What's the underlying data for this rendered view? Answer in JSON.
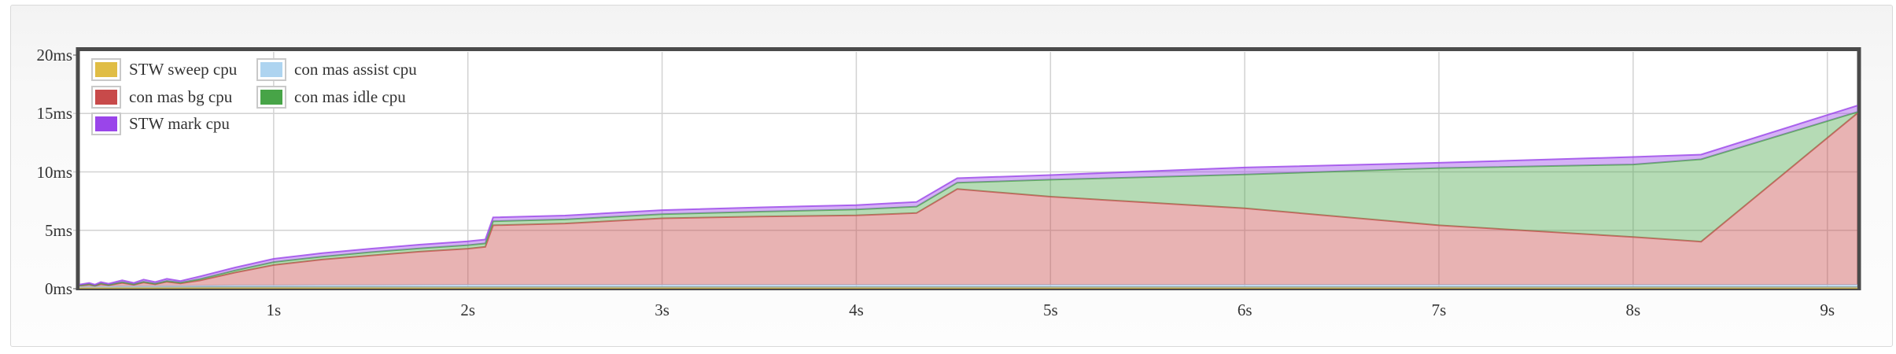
{
  "page": {
    "background": "#ffffff",
    "panel_border_color": "#d9d9d9",
    "plot_border_color": "#4a4a4a",
    "gridline_color": "#d2d2d2",
    "text_color": "#333333"
  },
  "legend": {
    "items": [
      {
        "label": "STW sweep cpu",
        "color": "#e0bd45",
        "col": 0,
        "row": 0
      },
      {
        "label": "con mas bg cpu",
        "color": "#c84a4a",
        "col": 0,
        "row": 1
      },
      {
        "label": "STW mark cpu",
        "color": "#9a45ea",
        "col": 0,
        "row": 2
      },
      {
        "label": "con mas assist cpu",
        "color": "#aed4f0",
        "col": 1,
        "row": 0
      },
      {
        "label": "con mas idle cpu",
        "color": "#47a447",
        "col": 1,
        "row": 1
      }
    ]
  },
  "axes": {
    "y": {
      "unit": "ms",
      "ticks": [
        {
          "label": "20ms",
          "value": 20
        },
        {
          "label": "15ms",
          "value": 15
        },
        {
          "label": "10ms",
          "value": 10
        },
        {
          "label": "5ms",
          "value": 5
        },
        {
          "label": "0ms",
          "value": 0
        }
      ]
    },
    "x": {
      "unit": "s",
      "ticks": [
        {
          "label": "1s",
          "value": 1
        },
        {
          "label": "2s",
          "value": 2
        },
        {
          "label": "3s",
          "value": 3
        },
        {
          "label": "4s",
          "value": 4
        },
        {
          "label": "5s",
          "value": 5
        },
        {
          "label": "6s",
          "value": 6
        },
        {
          "label": "7s",
          "value": 7
        },
        {
          "label": "8s",
          "value": 8
        },
        {
          "label": "9s",
          "value": 9
        }
      ]
    }
  },
  "chart_data": {
    "type": "area",
    "stacked": true,
    "grid": true,
    "legend_position": "top-left-inside",
    "xlim": [
      0,
      9.155
    ],
    "ylim": [
      0,
      20
    ],
    "x_unit": "seconds",
    "y_unit": "milliseconds",
    "x": [
      0,
      0.05,
      0.08,
      0.11,
      0.15,
      0.22,
      0.28,
      0.33,
      0.39,
      0.45,
      0.52,
      0.62,
      0.8,
      1.0,
      1.25,
      1.5,
      1.75,
      2.0,
      2.09,
      2.13,
      2.5,
      3.0,
      3.5,
      4.0,
      4.31,
      4.52,
      5.0,
      6.0,
      7.0,
      8.0,
      8.35,
      9.155
    ],
    "series": [
      {
        "name": "STW sweep cpu",
        "color": "#e0bd45",
        "fill_opacity": 0.5,
        "values": [
          0.08,
          0.08,
          0.08,
          0.08,
          0.08,
          0.08,
          0.08,
          0.08,
          0.08,
          0.08,
          0.08,
          0.08,
          0.08,
          0.08,
          0.08,
          0.08,
          0.08,
          0.08,
          0.08,
          0.08,
          0.08,
          0.08,
          0.08,
          0.08,
          0.08,
          0.08,
          0.08,
          0.08,
          0.08,
          0.08,
          0.08,
          0.08
        ]
      },
      {
        "name": "con mas assist cpu",
        "color": "#aed4f0",
        "fill_opacity": 0.55,
        "values": [
          0.1,
          0.1,
          0.1,
          0.12,
          0.12,
          0.14,
          0.14,
          0.15,
          0.15,
          0.16,
          0.16,
          0.18,
          0.2,
          0.2,
          0.22,
          0.22,
          0.24,
          0.25,
          0.25,
          0.25,
          0.25,
          0.25,
          0.25,
          0.25,
          0.25,
          0.25,
          0.25,
          0.25,
          0.25,
          0.25,
          0.25,
          0.25
        ]
      },
      {
        "name": "con mas bg cpu",
        "color": "#c84a4a",
        "fill_opacity": 0.42,
        "values": [
          0.08,
          0.18,
          0.07,
          0.2,
          0.1,
          0.28,
          0.12,
          0.3,
          0.15,
          0.35,
          0.22,
          0.45,
          1.1,
          1.75,
          2.2,
          2.55,
          2.85,
          3.1,
          3.25,
          5.1,
          5.25,
          5.7,
          5.85,
          5.95,
          6.15,
          8.2,
          7.55,
          6.55,
          5.1,
          4.1,
          3.7,
          14.7
        ]
      },
      {
        "name": "con mas idle cpu",
        "color": "#47a447",
        "fill_opacity": 0.4,
        "values": [
          0.02,
          0.04,
          0.02,
          0.05,
          0.03,
          0.06,
          0.04,
          0.07,
          0.05,
          0.08,
          0.06,
          0.12,
          0.18,
          0.25,
          0.25,
          0.28,
          0.28,
          0.3,
          0.3,
          0.35,
          0.35,
          0.35,
          0.42,
          0.5,
          0.55,
          0.55,
          1.45,
          2.9,
          4.9,
          6.2,
          7.05,
          0.1
        ]
      },
      {
        "name": "STW mark cpu",
        "color": "#9a45ea",
        "fill_opacity": 0.42,
        "values": [
          0.08,
          0.1,
          0.08,
          0.12,
          0.1,
          0.16,
          0.12,
          0.18,
          0.14,
          0.18,
          0.14,
          0.22,
          0.25,
          0.28,
          0.3,
          0.3,
          0.32,
          0.33,
          0.33,
          0.33,
          0.33,
          0.35,
          0.36,
          0.38,
          0.4,
          0.38,
          0.4,
          0.6,
          0.45,
          0.65,
          0.4,
          0.55
        ]
      }
    ]
  }
}
